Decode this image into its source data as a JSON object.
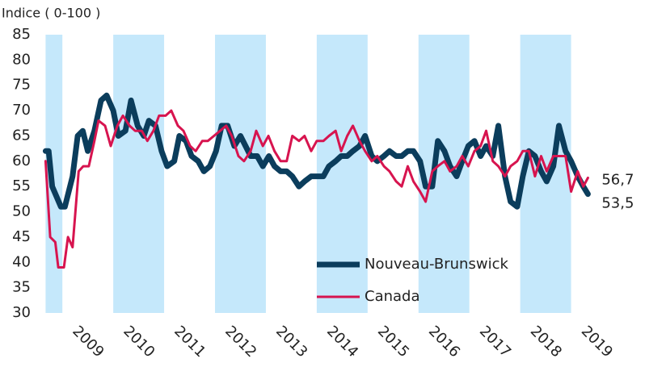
{
  "chart_data": {
    "type": "line",
    "title": "Indice ( 0-100 )",
    "ylim": [
      30,
      85
    ],
    "yticks": [
      30,
      35,
      40,
      45,
      50,
      55,
      60,
      65,
      70,
      75,
      80,
      85
    ],
    "xlim": [
      2008.6,
      2020.5
    ],
    "xticks": [
      2009,
      2010,
      2011,
      2012,
      2013,
      2014,
      2015,
      2016,
      2017,
      2018,
      2019
    ],
    "shaded": [
      [
        2008.67,
        2009
      ],
      [
        2010,
        2011
      ],
      [
        2012,
        2013
      ],
      [
        2014,
        2015
      ],
      [
        2016,
        2017
      ],
      [
        2018,
        2019
      ]
    ],
    "shade_color": "#c5e8fb",
    "legend": "inside-bottom-center",
    "series": [
      {
        "name": "Nouveau-Brunswick",
        "color": "#0b3d5c",
        "width": 7,
        "end_label": "53,5",
        "x": [
          2008.67,
          2008.73,
          2008.8,
          2008.97,
          2009.05,
          2009.2,
          2009.3,
          2009.4,
          2009.5,
          2009.63,
          2009.76,
          2009.87,
          2010,
          2010.1,
          2010.24,
          2010.35,
          2010.48,
          2010.6,
          2010.7,
          2010.83,
          2010.95,
          2011.06,
          2011.2,
          2011.3,
          2011.43,
          2011.54,
          2011.67,
          2011.78,
          2011.9,
          2012.02,
          2012.13,
          2012.25,
          2012.38,
          2012.5,
          2012.6,
          2012.7,
          2012.83,
          2012.94,
          2013.06,
          2013.17,
          2013.29,
          2013.41,
          2013.52,
          2013.65,
          2013.76,
          2013.89,
          2014,
          2014.13,
          2014.24,
          2014.37,
          2014.48,
          2014.6,
          2014.71,
          2014.84,
          2014.95,
          2015.08,
          2015.19,
          2015.32,
          2015.43,
          2015.56,
          2015.67,
          2015.79,
          2015.9,
          2016.03,
          2016.14,
          2016.27,
          2016.38,
          2016.51,
          2016.62,
          2016.75,
          2016.86,
          2016.98,
          2017.1,
          2017.22,
          2017.33,
          2017.46,
          2017.57,
          2017.7,
          2017.81,
          2017.94,
          2018.05,
          2018.17,
          2018.29,
          2018.41,
          2018.52,
          2018.65,
          2018.76,
          2018.89,
          2019,
          2019.13,
          2019.24,
          2019.33
        ],
        "values": [
          62,
          62,
          55,
          51,
          51,
          57,
          65,
          66,
          62,
          66,
          72,
          73,
          70,
          65,
          66,
          72,
          67,
          65,
          68,
          67,
          62,
          59,
          60,
          65,
          64,
          61,
          60,
          58,
          59,
          62,
          67,
          67,
          63,
          65,
          63,
          61,
          61,
          59,
          61,
          59,
          58,
          58,
          57,
          55,
          56,
          57,
          57,
          57,
          59,
          60,
          61,
          61,
          62,
          63,
          65,
          61,
          60,
          61,
          62,
          61,
          61,
          62,
          62,
          60,
          55,
          55,
          64,
          62,
          59,
          57,
          60,
          63,
          64,
          61,
          63,
          61,
          67,
          57,
          52,
          51,
          57,
          62,
          61,
          58,
          56,
          59,
          67,
          62,
          60,
          57,
          55,
          53.5
        ]
      },
      {
        "name": "Canada",
        "color": "#d7144f",
        "width": 3,
        "end_label": "56,7",
        "x": [
          2008.67,
          2008.76,
          2008.86,
          2008.92,
          2009.03,
          2009.11,
          2009.2,
          2009.32,
          2009.41,
          2009.52,
          2009.63,
          2009.71,
          2009.84,
          2009.95,
          2010.08,
          2010.19,
          2010.32,
          2010.43,
          2010.56,
          2010.67,
          2010.79,
          2010.9,
          2011.03,
          2011.14,
          2011.27,
          2011.38,
          2011.51,
          2011.62,
          2011.75,
          2011.86,
          2011.98,
          2012.1,
          2012.22,
          2012.33,
          2012.46,
          2012.57,
          2012.7,
          2012.81,
          2012.94,
          2013.05,
          2013.17,
          2013.29,
          2013.41,
          2013.52,
          2013.65,
          2013.76,
          2013.89,
          2014,
          2014.13,
          2014.24,
          2014.37,
          2014.48,
          2014.6,
          2014.71,
          2014.84,
          2014.95,
          2015.08,
          2015.19,
          2015.32,
          2015.43,
          2015.56,
          2015.67,
          2015.79,
          2015.9,
          2016.03,
          2016.14,
          2016.27,
          2016.38,
          2016.51,
          2016.62,
          2016.75,
          2016.86,
          2016.98,
          2017.1,
          2017.22,
          2017.33,
          2017.46,
          2017.57,
          2017.7,
          2017.81,
          2017.94,
          2018.05,
          2018.17,
          2018.29,
          2018.41,
          2018.52,
          2018.65,
          2018.76,
          2018.89,
          2019,
          2019.13,
          2019.24,
          2019.33
        ],
        "values": [
          60,
          45,
          44,
          39,
          39,
          45,
          43,
          58,
          59,
          59,
          64,
          68,
          67,
          63,
          67,
          69,
          67,
          66,
          66,
          64,
          66,
          69,
          69,
          70,
          67,
          66,
          63,
          62,
          64,
          64,
          65,
          66,
          67,
          65,
          61,
          60,
          62,
          66,
          63,
          65,
          62,
          60,
          60,
          65,
          64,
          65,
          62,
          64,
          64,
          65,
          66,
          62,
          65,
          67,
          64,
          62,
          60,
          61,
          59,
          58,
          56,
          55,
          59,
          56,
          54,
          52,
          58,
          59,
          60,
          58,
          59,
          61,
          59,
          62,
          63,
          66,
          60,
          59,
          57,
          59,
          60,
          62,
          62,
          57,
          61,
          58,
          61,
          61,
          61,
          54,
          58,
          55,
          56.7
        ]
      }
    ]
  }
}
